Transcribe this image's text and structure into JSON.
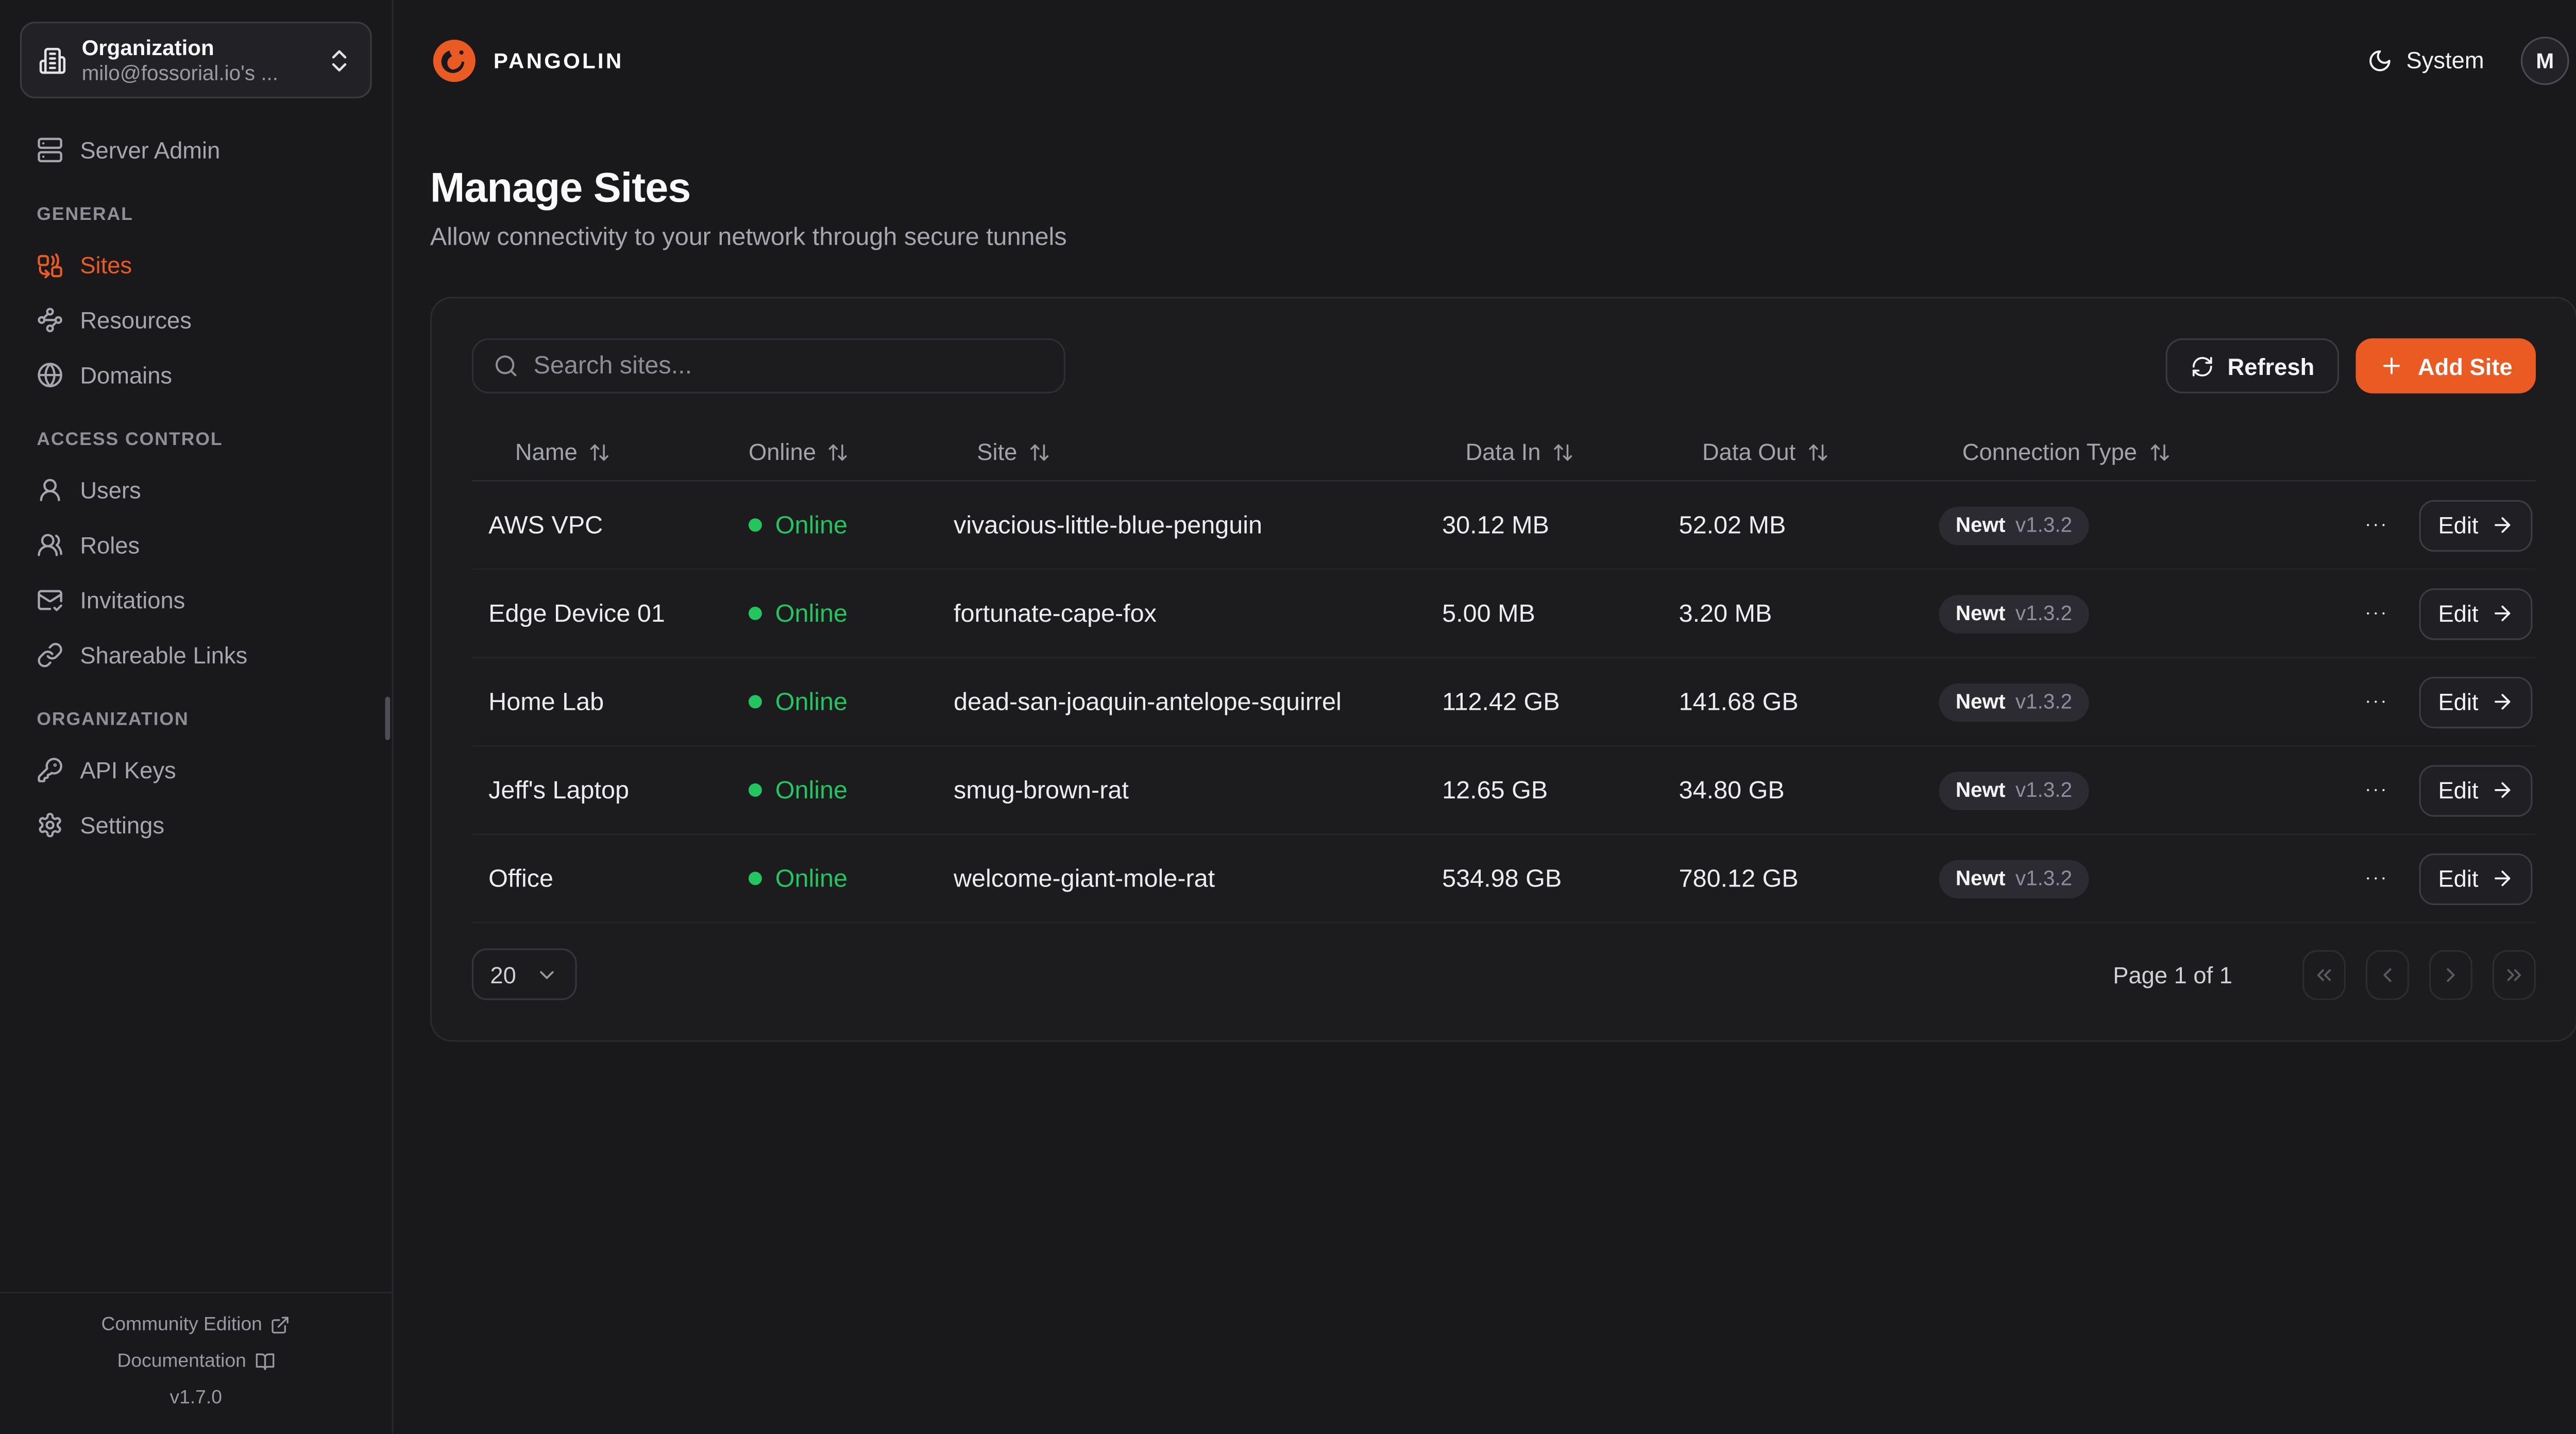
{
  "colors": {
    "accent": "#EA5B23",
    "online_green": "#22C55E",
    "background": "#19191C",
    "card_background": "#1C1C1F"
  },
  "header": {
    "brand": "PANGOLIN",
    "theme_label": "System",
    "avatar_initial": "M"
  },
  "sidebar": {
    "org_selector": {
      "label": "Organization",
      "value": "milo@fossorial.io's ...",
      "icon": "building-icon",
      "chevron_icon": "chevrons-up-down-icon"
    },
    "top_items": [
      {
        "label": "Server Admin",
        "icon": "server-icon"
      }
    ],
    "sections": [
      {
        "title": "GENERAL",
        "items": [
          {
            "label": "Sites",
            "icon": "combine-icon",
            "active": true
          },
          {
            "label": "Resources",
            "icon": "waypoints-icon",
            "active": false
          },
          {
            "label": "Domains",
            "icon": "globe-icon",
            "active": false
          }
        ]
      },
      {
        "title": "ACCESS CONTROL",
        "items": [
          {
            "label": "Users",
            "icon": "user-icon",
            "active": false
          },
          {
            "label": "Roles",
            "icon": "users-icon",
            "active": false
          },
          {
            "label": "Invitations",
            "icon": "mail-check-icon",
            "active": false
          },
          {
            "label": "Shareable Links",
            "icon": "link-icon",
            "active": false
          }
        ]
      },
      {
        "title": "ORGANIZATION",
        "items": [
          {
            "label": "API Keys",
            "icon": "key-icon",
            "active": false
          },
          {
            "label": "Settings",
            "icon": "gear-icon",
            "active": false
          }
        ]
      }
    ],
    "footer": {
      "community_edition": "Community Edition",
      "documentation": "Documentation",
      "version": "v1.7.0"
    }
  },
  "page": {
    "title": "Manage Sites",
    "subtitle": "Allow connectivity to your network through secure tunnels"
  },
  "toolbar": {
    "search_placeholder": "Search sites...",
    "refresh_label": "Refresh",
    "add_site_label": "Add Site"
  },
  "table": {
    "columns": [
      "Name",
      "Online",
      "Site",
      "Data In",
      "Data Out",
      "Connection Type"
    ],
    "row_actions": {
      "edit_label": "Edit"
    },
    "rows": [
      {
        "name": "AWS VPC",
        "status": "Online",
        "site": "vivacious-little-blue-penguin",
        "data_in": "30.12 MB",
        "data_out": "52.02 MB",
        "conn_type": "Newt",
        "conn_version": "v1.3.2"
      },
      {
        "name": "Edge Device 01",
        "status": "Online",
        "site": "fortunate-cape-fox",
        "data_in": "5.00 MB",
        "data_out": "3.20 MB",
        "conn_type": "Newt",
        "conn_version": "v1.3.2"
      },
      {
        "name": "Home Lab",
        "status": "Online",
        "site": "dead-san-joaquin-antelope-squirrel",
        "data_in": "112.42 GB",
        "data_out": "141.68 GB",
        "conn_type": "Newt",
        "conn_version": "v1.3.2"
      },
      {
        "name": "Jeff's Laptop",
        "status": "Online",
        "site": "smug-brown-rat",
        "data_in": "12.65 GB",
        "data_out": "34.80 GB",
        "conn_type": "Newt",
        "conn_version": "v1.3.2"
      },
      {
        "name": "Office",
        "status": "Online",
        "site": "welcome-giant-mole-rat",
        "data_in": "534.98 GB",
        "data_out": "780.12 GB",
        "conn_type": "Newt",
        "conn_version": "v1.3.2"
      }
    ]
  },
  "pagination": {
    "page_size": "20",
    "page_label": "Page 1 of 1"
  },
  "icons": {
    "pangolin-logo-icon": "orange pangolin swirl",
    "building-icon": "organization building",
    "chevrons-up-down-icon": "select expander",
    "server-icon": "server admin",
    "combine-icon": "sites tunnels",
    "waypoints-icon": "resources",
    "globe-icon": "domains",
    "user-icon": "users",
    "users-icon": "roles",
    "mail-check-icon": "invitations",
    "link-icon": "shareable links",
    "key-icon": "api keys",
    "gear-icon": "settings",
    "external-link-icon": "external link",
    "book-open-icon": "documentation",
    "moon-icon": "theme system",
    "search-icon": "search",
    "refresh-icon": "refresh",
    "plus-icon": "add",
    "sort-icon": "sort column",
    "ellipsis-icon": "row actions menu",
    "arrow-right-icon": "edit arrow",
    "chevron-down-icon": "page size dropdown",
    "chevrons-left-icon": "first page",
    "chevron-left-icon": "previous page",
    "chevron-right-icon": "next page",
    "chevrons-right-icon": "last page"
  }
}
